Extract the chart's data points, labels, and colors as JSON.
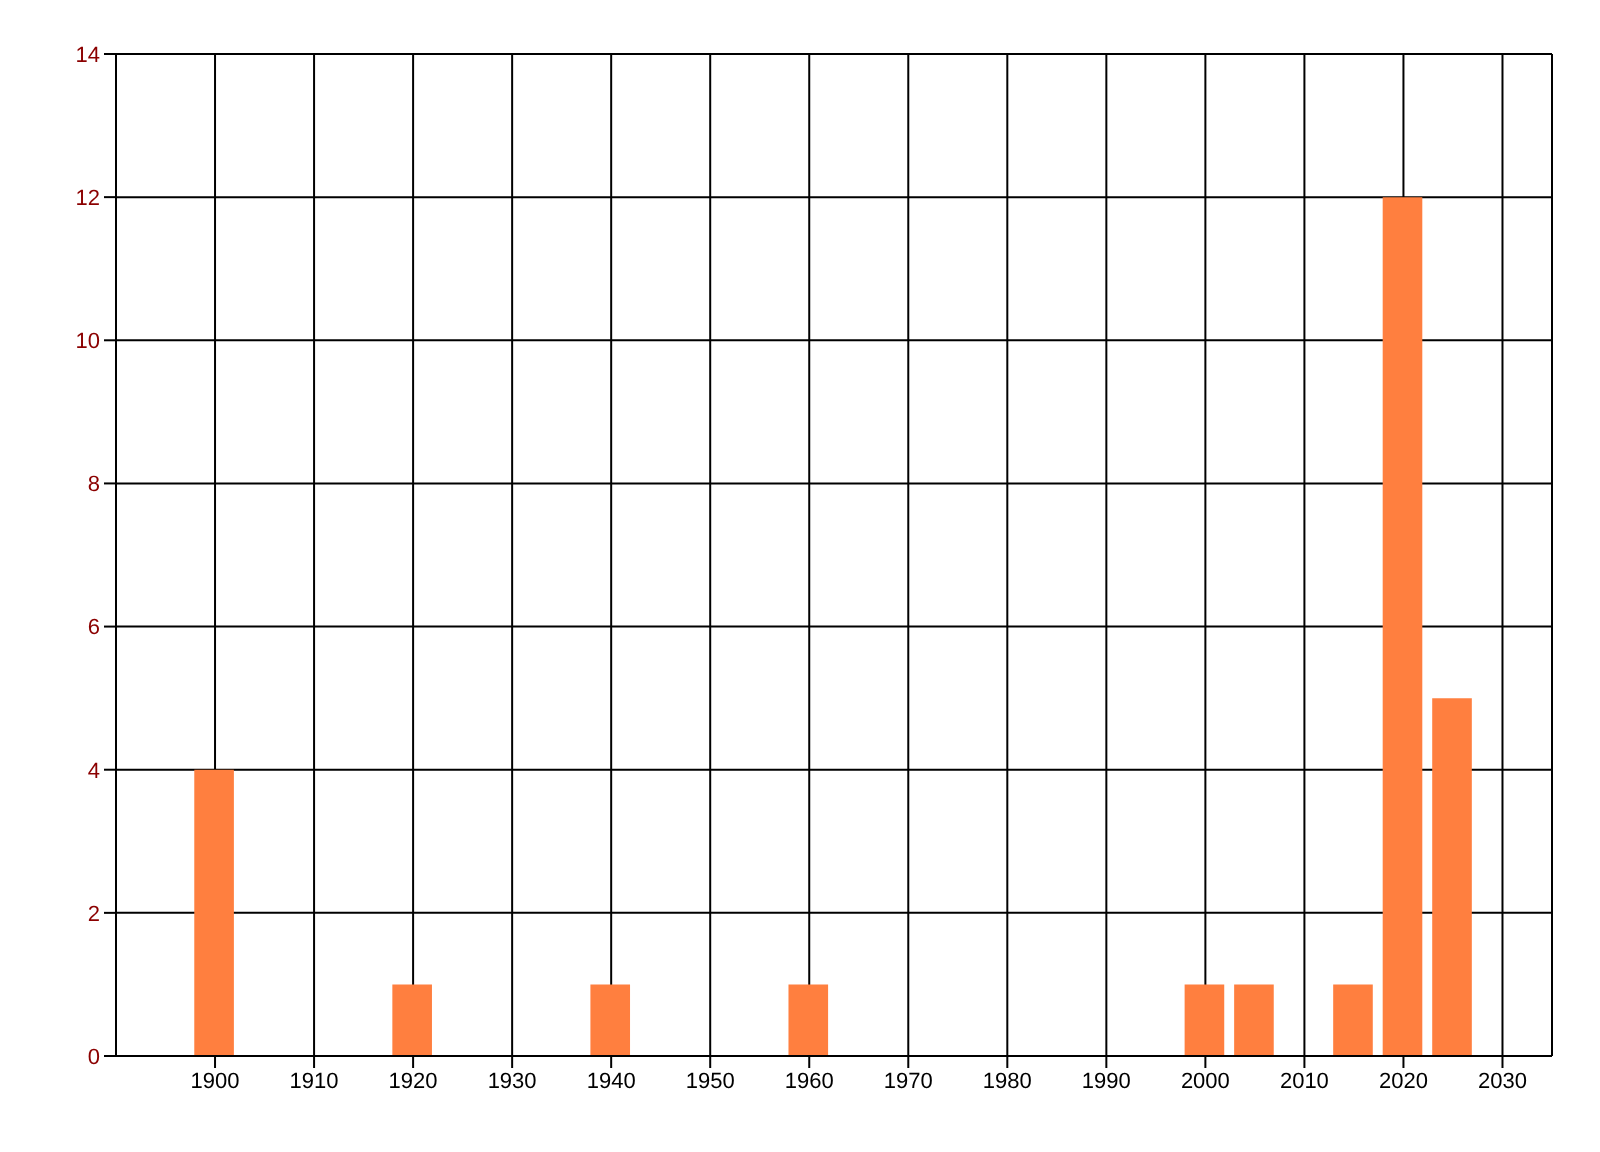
{
  "chart_data": {
    "type": "bar",
    "x": [
      1900,
      1920,
      1940,
      1960,
      2000,
      2005,
      2015,
      2020,
      2025
    ],
    "values": [
      4,
      1,
      1,
      1,
      1,
      1,
      1,
      12,
      5
    ],
    "color": "#ff7f3f",
    "xlim": [
      1890,
      2035
    ],
    "xticks": [
      1900,
      1910,
      1920,
      1930,
      1940,
      1950,
      1960,
      1970,
      1980,
      1990,
      2000,
      2010,
      2020,
      2030
    ],
    "ylim": [
      0,
      14
    ],
    "yticks": [
      0,
      2,
      4,
      6,
      8,
      10,
      12,
      14
    ],
    "grid": true,
    "legend": false
  }
}
